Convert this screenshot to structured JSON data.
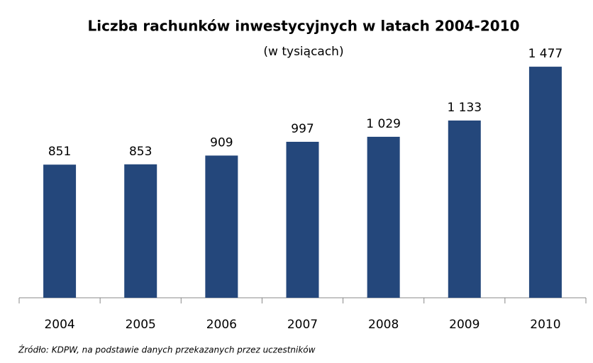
{
  "chart_data": {
    "type": "bar",
    "title": "Liczba rachunków inwestycyjnych w latach 2004-2010",
    "subtitle": "(w tysiącach)",
    "categories": [
      "2004",
      "2005",
      "2006",
      "2007",
      "2008",
      "2009",
      "2010"
    ],
    "values": [
      851,
      853,
      909,
      997,
      1029,
      1133,
      1477
    ],
    "value_labels": [
      "851",
      "853",
      "909",
      "997",
      "1 029",
      "1 133",
      "1 477"
    ],
    "color": "#24477b",
    "ylim": [
      0,
      1500
    ],
    "source": "Źródło: KDPW, na podstawie danych przekazanych przez uczestników"
  }
}
